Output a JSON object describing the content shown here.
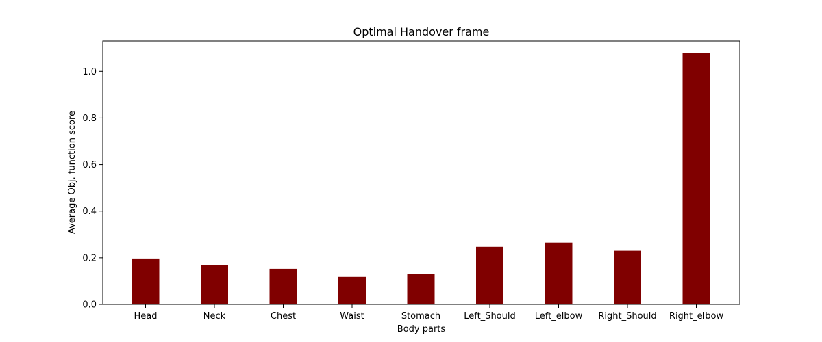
{
  "chart_data": {
    "type": "bar",
    "title": "Optimal Handover frame",
    "xlabel": "Body parts",
    "ylabel": "Average Obj. function score",
    "categories": [
      "Head",
      "Neck",
      "Chest",
      "Waist",
      "Stomach",
      "Left_Should",
      "Left_elbow",
      "Right_Should",
      "Right_elbow"
    ],
    "values": [
      0.197,
      0.168,
      0.153,
      0.118,
      0.13,
      0.247,
      0.265,
      0.23,
      1.08
    ],
    "ylim": [
      0,
      1.13
    ],
    "yticks": [
      "0.0",
      "0.2",
      "0.4",
      "0.6",
      "0.8",
      "1.0"
    ],
    "bar_color": "#800000",
    "grid": false,
    "legend": false
  }
}
